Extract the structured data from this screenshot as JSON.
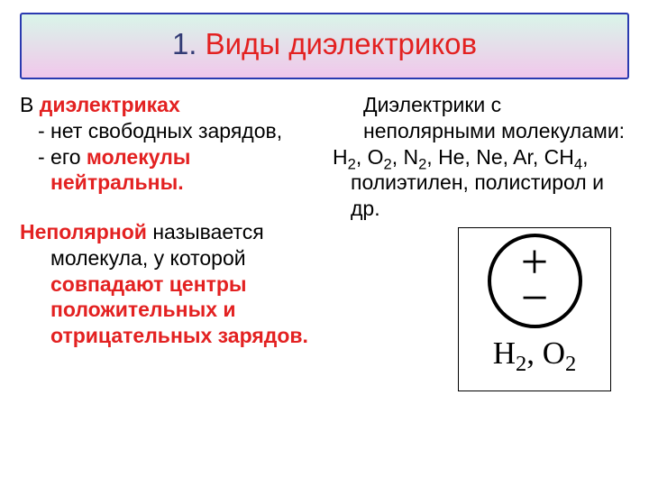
{
  "colors": {
    "title_border": "#2a3ab0",
    "title_gradient_start": "#d9f5e9",
    "title_gradient_end": "#f1c7eb",
    "title_number_color": "#323b75",
    "title_text_color": "#e32121",
    "body_text_color": "#000000",
    "highlight_red": "#e32121",
    "figure_border": "#000000",
    "circle_stroke": "#000000"
  },
  "title": {
    "number": "1.",
    "text": "Виды диэлектриков"
  },
  "left": {
    "l1_prefix": "В ",
    "l1_hl": "диэлектриках",
    "l2": "- нет свободных зарядов,",
    "l3_prefix": "- его ",
    "l3_hl": "молекулы нейтральны.",
    "p2_hl1": "Неполярной",
    "p2_mid": " называется молекула, у которой ",
    "p2_hl2": "совпадают центры положительных и отрицательных зарядов."
  },
  "right": {
    "heading": "Диэлектрики с неполярными молекулами:",
    "list_html": "H<sub>2</sub>, O<sub>2</sub>, N<sub>2</sub>, He, Ne, Ar, CH<sub>4</sub>, полиэтилен, полистирол и др.",
    "plus": "+",
    "minus": "−",
    "caption_html": "H<sub>2</sub>, O<sub>2</sub>"
  }
}
